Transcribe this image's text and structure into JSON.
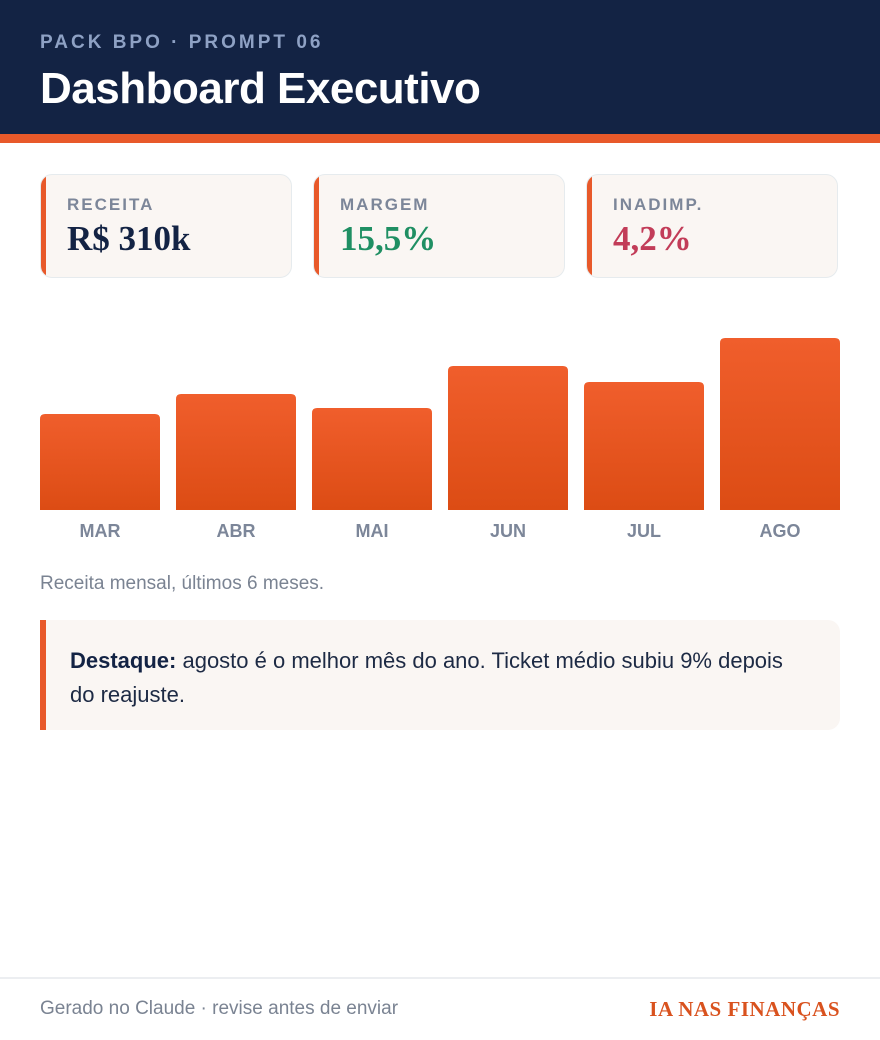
{
  "header": {
    "eyebrow": "PACK BPO · PROMPT 06",
    "title": "Dashboard Executivo"
  },
  "kpis": [
    {
      "label": "RECEITA",
      "value": "R$ 310k",
      "color": "#132344"
    },
    {
      "label": "MARGEM",
      "value": "15,5%",
      "color": "#1f8f63"
    },
    {
      "label": "INADIMP.",
      "value": "4,2%",
      "color": "#c23c58"
    }
  ],
  "chart_data": {
    "type": "bar",
    "categories": [
      "MAR",
      "ABR",
      "MAI",
      "JUN",
      "JUL",
      "AGO"
    ],
    "values": [
      96,
      116,
      102,
      144,
      128,
      172
    ],
    "bar_color": "#e8592a"
  },
  "chart_caption": "Receita mensal, últimos 6 meses.",
  "highlight": {
    "label": "Destaque:",
    "text": " agosto é o melhor mês do ano. Ticket médio subiu 9% depois do reajuste."
  },
  "footer": {
    "left": "Gerado no Claude · revise antes de enviar",
    "brand": "IA NAS FINANÇAS"
  }
}
